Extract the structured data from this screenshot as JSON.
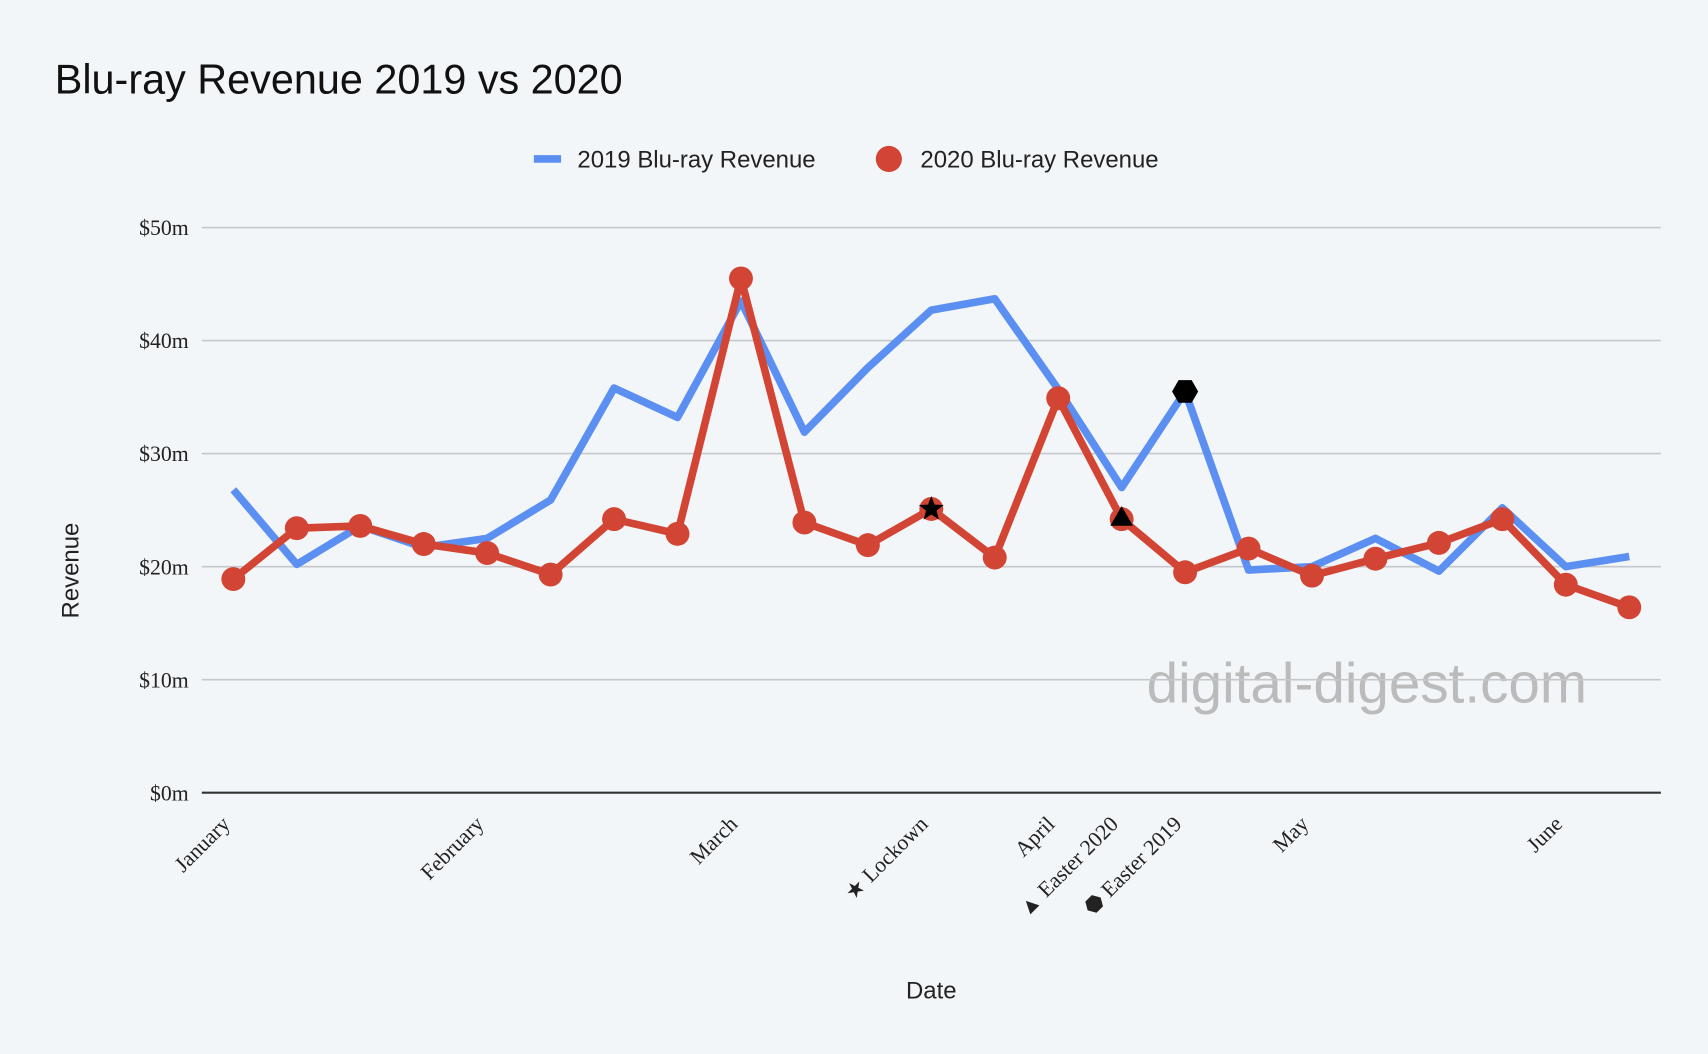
{
  "chart_data": {
    "type": "line",
    "title": "Blu-ray Revenue 2019 vs 2020",
    "x_label": "Date",
    "y_label": "Revenue",
    "watermark": "digital-digest.com",
    "categories": [
      "January",
      null,
      null,
      null,
      "February",
      null,
      null,
      null,
      "March",
      null,
      null,
      "★ Lockown",
      null,
      "April",
      "▲ Easter 2020",
      "⬣ Easter 2019",
      null,
      "May",
      null,
      null,
      null,
      "June",
      null
    ],
    "series": [
      {
        "name": "2019 Blu-ray Revenue",
        "color": "#5b8ff2",
        "markers": false,
        "values": [
          26.8,
          20.2,
          23.6,
          21.7,
          22.5,
          25.9,
          35.8,
          33.2,
          43.5,
          31.9,
          37.6,
          42.7,
          43.7,
          35.7,
          27.0,
          35.5,
          19.7,
          20.0,
          22.5,
          19.6,
          25.2,
          20.0,
          20.9
        ]
      },
      {
        "name": "2020 Blu-ray Revenue",
        "color": "#d24535",
        "markers": true,
        "values": [
          18.9,
          23.4,
          23.6,
          22.0,
          21.2,
          19.3,
          24.2,
          22.9,
          45.5,
          23.9,
          21.9,
          25.1,
          20.8,
          34.9,
          24.2,
          19.5,
          21.6,
          19.2,
          20.7,
          22.1,
          24.2,
          18.4,
          16.4
        ]
      }
    ],
    "point_markers": [
      {
        "series": 1,
        "index": 11,
        "shape": "star"
      },
      {
        "series": 1,
        "index": 14,
        "shape": "triangle"
      },
      {
        "series": 0,
        "index": 15,
        "shape": "hexagon"
      }
    ],
    "ylim": [
      0,
      50
    ],
    "yticks": [
      {
        "value": 0,
        "label": "$0m"
      },
      {
        "value": 10,
        "label": "$10m"
      },
      {
        "value": 20,
        "label": "$20m"
      },
      {
        "value": 30,
        "label": "$30m"
      },
      {
        "value": 40,
        "label": "$40m"
      },
      {
        "value": 50,
        "label": "$50m"
      }
    ],
    "grid": true,
    "legend": "top"
  }
}
